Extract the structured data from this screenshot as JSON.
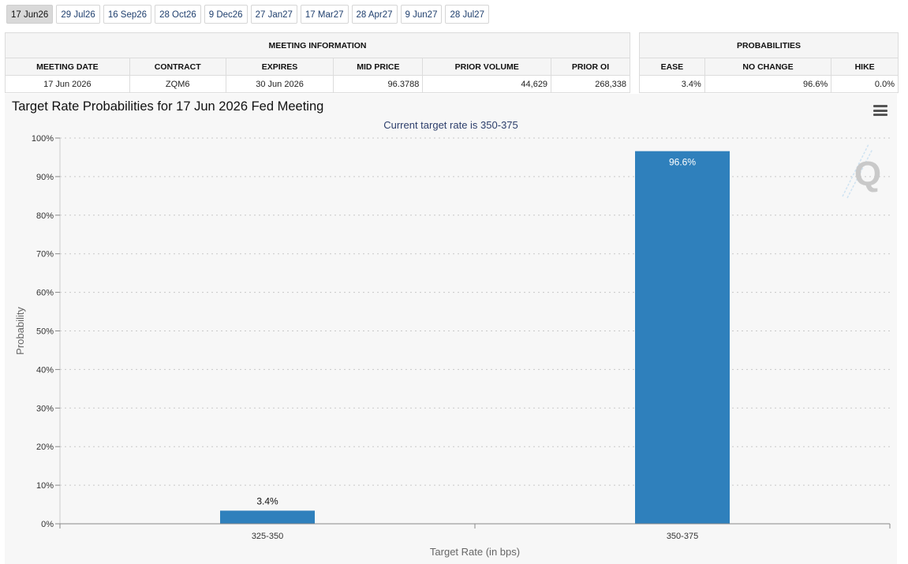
{
  "tabs": [
    "17 Jun26",
    "29 Jul26",
    "16 Sep26",
    "28 Oct26",
    "9 Dec26",
    "27 Jan27",
    "17 Mar27",
    "28 Apr27",
    "9 Jun27",
    "28 Jul27"
  ],
  "active_tab": 0,
  "meeting_info": {
    "header": "MEETING INFORMATION",
    "columns": [
      "MEETING DATE",
      "CONTRACT",
      "EXPIRES",
      "MID PRICE",
      "PRIOR VOLUME",
      "PRIOR OI"
    ],
    "values": [
      "17 Jun 2026",
      "ZQM6",
      "30 Jun 2026",
      "96.3788",
      "44,629",
      "268,338"
    ]
  },
  "probabilities": {
    "header": "PROBABILITIES",
    "columns": [
      "EASE",
      "NO CHANGE",
      "HIKE"
    ],
    "values": [
      "3.4%",
      "96.6%",
      "0.0%"
    ]
  },
  "chart_data": {
    "type": "bar",
    "title": "Target Rate Probabilities for 17 Jun 2026 Fed Meeting",
    "subtitle": "Current target rate is 350-375",
    "xlabel": "Target Rate (in bps)",
    "ylabel": "Probability",
    "categories": [
      "325-350",
      "350-375"
    ],
    "values": [
      3.4,
      96.6
    ],
    "data_labels": [
      "3.4%",
      "96.6%"
    ],
    "ylim": [
      0,
      100
    ],
    "yticks": [
      "0%",
      "10%",
      "20%",
      "30%",
      "40%",
      "50%",
      "60%",
      "70%",
      "80%",
      "90%",
      "100%"
    ],
    "bar_color": "#2f80bc",
    "grid": true
  },
  "watermark_letter": "Q"
}
